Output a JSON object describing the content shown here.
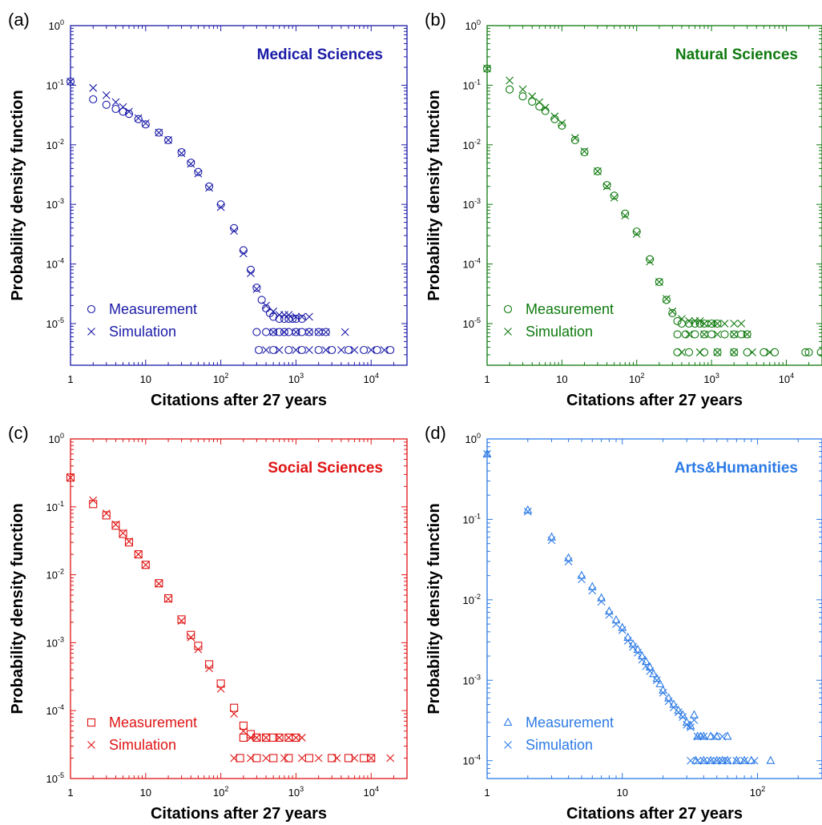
{
  "chart_data": [
    {
      "type": "scatter",
      "panel_label": "(a)",
      "title": "Medical Sciences",
      "color": "#1a1aa8",
      "marker": "circle",
      "xlabel": "Citations after 27 years",
      "ylabel": "Probability density function",
      "x_scale": "log",
      "y_scale": "log",
      "xlim": [
        1,
        30000
      ],
      "ylim": [
        2e-06,
        1
      ],
      "x_ticks": [
        1,
        10,
        100,
        1000,
        10000
      ],
      "x_tick_labels": [
        {
          "base": "1"
        },
        {
          "base": "10"
        },
        {
          "base": "10",
          "exp": "2"
        },
        {
          "base": "10",
          "exp": "3"
        },
        {
          "base": "10",
          "exp": "4"
        }
      ],
      "y_ticks": [
        1e-05,
        0.0001,
        0.001,
        0.01,
        0.1,
        1
      ],
      "y_tick_labels": [
        {
          "base": "10",
          "exp": "-5"
        },
        {
          "base": "10",
          "exp": "-4"
        },
        {
          "base": "10",
          "exp": "-3"
        },
        {
          "base": "10",
          "exp": "-2"
        },
        {
          "base": "10",
          "exp": "-1"
        },
        {
          "base": "10",
          "exp": "0"
        }
      ],
      "legend": {
        "position": "bottom-left",
        "entries": [
          "Measurement",
          "Simulation"
        ]
      },
      "series": [
        {
          "name": "Measurement",
          "marker": "circle",
          "x": [
            1,
            2,
            3,
            4,
            5,
            6,
            8,
            10,
            15,
            20,
            30,
            40,
            50,
            70,
            100,
            150,
            200,
            250,
            300,
            350,
            400,
            450,
            500,
            600,
            700,
            800,
            900,
            1000,
            1200,
            300,
            400,
            500,
            600,
            700,
            800,
            1000,
            1200,
            1500,
            2000,
            2500,
            320,
            500,
            800,
            1200,
            2000,
            3000,
            5000,
            8000,
            12000,
            18000
          ],
          "y": [
            0.115,
            0.058,
            0.047,
            0.04,
            0.036,
            0.033,
            0.027,
            0.022,
            0.016,
            0.012,
            0.0075,
            0.005,
            0.0035,
            0.002,
            0.001,
            0.0004,
            0.00017,
            8e-05,
            4e-05,
            2.5e-05,
            1.8e-05,
            1.5e-05,
            1.3e-05,
            1.2e-05,
            1.2e-05,
            1.2e-05,
            1.2e-05,
            1.2e-05,
            1.2e-05,
            7.2e-06,
            7.2e-06,
            7.2e-06,
            7.2e-06,
            7.2e-06,
            7.2e-06,
            7.2e-06,
            7.2e-06,
            7.2e-06,
            7.2e-06,
            7.2e-06,
            3.6e-06,
            3.6e-06,
            3.6e-06,
            3.6e-06,
            3.6e-06,
            3.6e-06,
            3.6e-06,
            3.6e-06,
            3.6e-06,
            3.6e-06
          ]
        },
        {
          "name": "Simulation",
          "marker": "cross",
          "x": [
            1,
            2,
            3,
            4,
            5,
            6,
            8,
            10,
            15,
            20,
            30,
            40,
            50,
            70,
            100,
            150,
            200,
            250,
            300,
            400,
            500,
            600,
            700,
            800,
            1000,
            1200,
            1500,
            500,
            700,
            1000,
            1500,
            2000,
            2500,
            4500,
            400,
            600,
            1000,
            1500,
            2500,
            4000,
            6000,
            10000,
            15000
          ],
          "y": [
            0.115,
            0.09,
            0.068,
            0.052,
            0.043,
            0.036,
            0.028,
            0.023,
            0.016,
            0.012,
            0.0072,
            0.0048,
            0.0033,
            0.0019,
            0.0009,
            0.00036,
            0.00015,
            7e-05,
            3.8e-05,
            2e-05,
            1.6e-05,
            1.4e-05,
            1.4e-05,
            1.4e-05,
            1.3e-05,
            1.3e-05,
            1.3e-05,
            7.2e-06,
            7.2e-06,
            7.2e-06,
            7.2e-06,
            7.2e-06,
            7.2e-06,
            7.2e-06,
            3.6e-06,
            3.6e-06,
            3.6e-06,
            3.6e-06,
            3.6e-06,
            3.6e-06,
            3.6e-06,
            3.6e-06,
            3.6e-06
          ]
        }
      ]
    },
    {
      "type": "scatter",
      "panel_label": "(b)",
      "title": "Natural Sciences",
      "color": "#0e7a0e",
      "marker": "circle",
      "xlabel": "Citations after 27 years",
      "ylabel": "Probability density function",
      "x_scale": "log",
      "y_scale": "log",
      "xlim": [
        1,
        30000
      ],
      "ylim": [
        2e-06,
        1
      ],
      "x_ticks": [
        1,
        10,
        100,
        1000,
        10000
      ],
      "x_tick_labels": [
        {
          "base": "1"
        },
        {
          "base": "10"
        },
        {
          "base": "10",
          "exp": "2"
        },
        {
          "base": "10",
          "exp": "3"
        },
        {
          "base": "10",
          "exp": "4"
        }
      ],
      "y_ticks": [
        1e-05,
        0.0001,
        0.001,
        0.01,
        0.1,
        1
      ],
      "y_tick_labels": [
        {
          "base": "10",
          "exp": "-5"
        },
        {
          "base": "10",
          "exp": "-4"
        },
        {
          "base": "10",
          "exp": "-3"
        },
        {
          "base": "10",
          "exp": "-2"
        },
        {
          "base": "10",
          "exp": "-1"
        },
        {
          "base": "10",
          "exp": "0"
        }
      ],
      "legend": {
        "position": "bottom-left",
        "entries": [
          "Measurement",
          "Simulation"
        ]
      },
      "series": [
        {
          "name": "Measurement",
          "marker": "circle",
          "x": [
            1,
            2,
            3,
            4,
            5,
            6,
            8,
            10,
            15,
            20,
            30,
            40,
            50,
            70,
            100,
            150,
            200,
            250,
            300,
            350,
            400,
            500,
            600,
            700,
            800,
            1000,
            1200,
            350,
            450,
            600,
            800,
            1000,
            1500,
            2000,
            2500,
            3000,
            350,
            500,
            800,
            1200,
            2000,
            3000,
            5000,
            7000,
            18000,
            20000,
            29000
          ],
          "y": [
            0.19,
            0.085,
            0.065,
            0.053,
            0.044,
            0.037,
            0.027,
            0.021,
            0.012,
            0.0075,
            0.0036,
            0.0021,
            0.0014,
            0.0007,
            0.00035,
            0.00012,
            5e-05,
            2.5e-05,
            1.5e-05,
            1.1e-05,
            1e-05,
            1e-05,
            1e-05,
            1e-05,
            1e-05,
            1e-05,
            1e-05,
            6.6e-06,
            6.6e-06,
            6.6e-06,
            6.6e-06,
            6.6e-06,
            6.6e-06,
            6.6e-06,
            6.6e-06,
            6.6e-06,
            3.3e-06,
            3.3e-06,
            3.3e-06,
            3.3e-06,
            3.3e-06,
            3.3e-06,
            3.3e-06,
            3.3e-06,
            3.3e-06,
            3.3e-06,
            3.3e-06
          ]
        },
        {
          "name": "Simulation",
          "marker": "cross",
          "x": [
            1,
            2,
            3,
            4,
            5,
            6,
            8,
            10,
            15,
            20,
            30,
            40,
            50,
            70,
            100,
            150,
            200,
            250,
            300,
            400,
            500,
            600,
            700,
            800,
            1000,
            1200,
            1500,
            2000,
            2500,
            500,
            800,
            1200,
            2000,
            3000,
            400,
            700,
            1200,
            2000,
            3500,
            6000
          ],
          "y": [
            0.19,
            0.12,
            0.085,
            0.065,
            0.052,
            0.042,
            0.03,
            0.023,
            0.013,
            0.0078,
            0.0036,
            0.002,
            0.0013,
            0.00065,
            0.00032,
            0.00011,
            5e-05,
            2.6e-05,
            1.6e-05,
            1.2e-05,
            1.1e-05,
            1.1e-05,
            1.1e-05,
            1e-05,
            1e-05,
            1e-05,
            1e-05,
            1e-05,
            1e-05,
            6.6e-06,
            6.6e-06,
            6.6e-06,
            6.6e-06,
            6.6e-06,
            3.3e-06,
            3.3e-06,
            3.3e-06,
            3.3e-06,
            3.3e-06,
            3.3e-06
          ]
        }
      ]
    },
    {
      "type": "scatter",
      "panel_label": "(c)",
      "title": "Social Sciences",
      "color": "#e01414",
      "marker": "square",
      "xlabel": "Citations after 27 years",
      "ylabel": "Probability density function",
      "x_scale": "log",
      "y_scale": "log",
      "xlim": [
        1,
        30000
      ],
      "ylim": [
        1e-05,
        1
      ],
      "x_ticks": [
        1,
        10,
        100,
        1000,
        10000
      ],
      "x_tick_labels": [
        {
          "base": "1"
        },
        {
          "base": "10"
        },
        {
          "base": "10",
          "exp": "2"
        },
        {
          "base": "10",
          "exp": "3"
        },
        {
          "base": "10",
          "exp": "4"
        }
      ],
      "y_ticks": [
        1e-05,
        0.0001,
        0.001,
        0.01,
        0.1,
        1
      ],
      "y_tick_labels": [
        {
          "base": "10",
          "exp": "-5"
        },
        {
          "base": "10",
          "exp": "-4"
        },
        {
          "base": "10",
          "exp": "-3"
        },
        {
          "base": "10",
          "exp": "-2"
        },
        {
          "base": "10",
          "exp": "-1"
        },
        {
          "base": "10",
          "exp": "0"
        }
      ],
      "legend": {
        "position": "bottom-left",
        "entries": [
          "Measurement",
          "Simulation"
        ]
      },
      "series": [
        {
          "name": "Measurement",
          "marker": "square",
          "x": [
            1,
            2,
            3,
            4,
            5,
            6,
            8,
            10,
            15,
            20,
            30,
            40,
            50,
            70,
            100,
            150,
            200,
            250,
            300,
            400,
            500,
            200,
            300,
            400,
            600,
            800,
            1000,
            180,
            300,
            500,
            800,
            1500,
            3000,
            5000,
            8000,
            10000
          ],
          "y": [
            0.27,
            0.11,
            0.075,
            0.053,
            0.04,
            0.03,
            0.02,
            0.014,
            0.0075,
            0.0045,
            0.0022,
            0.0013,
            0.0009,
            0.00048,
            0.00025,
            0.00011,
            6e-05,
            4.5e-05,
            4e-05,
            4e-05,
            4e-05,
            4e-05,
            4e-05,
            4e-05,
            4e-05,
            4e-05,
            4e-05,
            2e-05,
            2e-05,
            2e-05,
            2e-05,
            2e-05,
            2e-05,
            2e-05,
            2e-05,
            2e-05
          ]
        },
        {
          "name": "Simulation",
          "marker": "cross",
          "x": [
            1,
            2,
            3,
            4,
            5,
            6,
            8,
            10,
            15,
            20,
            30,
            40,
            50,
            70,
            100,
            150,
            200,
            250,
            300,
            400,
            600,
            800,
            1000,
            1200,
            150,
            250,
            400,
            700,
            1200,
            2000,
            3500,
            6000,
            10000,
            18000
          ],
          "y": [
            0.27,
            0.125,
            0.08,
            0.055,
            0.041,
            0.031,
            0.02,
            0.014,
            0.0074,
            0.0044,
            0.0021,
            0.0012,
            0.0008,
            0.00042,
            0.00021,
            9e-05,
            5e-05,
            4e-05,
            4e-05,
            4e-05,
            4e-05,
            4e-05,
            4e-05,
            4e-05,
            2e-05,
            2e-05,
            2e-05,
            2e-05,
            2e-05,
            2e-05,
            2e-05,
            2e-05,
            2e-05,
            2e-05
          ]
        }
      ]
    },
    {
      "type": "scatter",
      "panel_label": "(d)",
      "title": "Arts&Humanities",
      "color": "#2d7be6",
      "marker": "triangle",
      "xlabel": "Citations after 27 years",
      "ylabel": "Probability density function",
      "x_scale": "log",
      "y_scale": "log",
      "xlim": [
        1,
        300
      ],
      "ylim": [
        6e-05,
        1
      ],
      "x_ticks": [
        1,
        10,
        100
      ],
      "x_tick_labels": [
        {
          "base": "1"
        },
        {
          "base": "10"
        },
        {
          "base": "10",
          "exp": "2"
        }
      ],
      "y_ticks": [
        0.0001,
        0.001,
        0.01,
        0.1,
        1
      ],
      "y_tick_labels": [
        {
          "base": "10",
          "exp": "-4"
        },
        {
          "base": "10",
          "exp": "-3"
        },
        {
          "base": "10",
          "exp": "-2"
        },
        {
          "base": "10",
          "exp": "-1"
        },
        {
          "base": "10",
          "exp": "0"
        }
      ],
      "legend": {
        "position": "bottom-left",
        "entries": [
          "Measurement",
          "Simulation"
        ]
      },
      "series": [
        {
          "name": "Measurement",
          "marker": "triangle",
          "x": [
            1,
            2,
            3,
            4,
            5,
            6,
            7,
            8,
            9,
            10,
            11,
            12,
            13,
            14,
            15,
            16,
            17,
            18,
            19,
            20,
            22,
            24,
            26,
            28,
            30,
            32,
            34,
            36,
            38,
            40,
            45,
            50,
            60,
            35,
            40,
            45,
            50,
            55,
            60,
            70,
            80,
            90,
            125
          ],
          "y": [
            0.65,
            0.13,
            0.06,
            0.033,
            0.02,
            0.0145,
            0.0105,
            0.0072,
            0.0056,
            0.0045,
            0.0034,
            0.0028,
            0.0024,
            0.002,
            0.0017,
            0.00145,
            0.0012,
            0.00105,
            0.0009,
            0.00075,
            0.0006,
            0.0005,
            0.00042,
            0.00037,
            0.0003,
            0.00027,
            0.00037,
            0.0002,
            0.0002,
            0.0002,
            0.0002,
            0.0002,
            0.0002,
            0.0001,
            0.0001,
            0.0001,
            0.0001,
            0.0001,
            0.0001,
            0.0001,
            0.0001,
            0.0001,
            0.0001
          ]
        },
        {
          "name": "Simulation",
          "marker": "cross",
          "x": [
            1,
            2,
            3,
            4,
            5,
            6,
            7,
            8,
            9,
            10,
            11,
            12,
            13,
            14,
            15,
            16,
            18,
            20,
            22,
            24,
            26,
            28,
            30,
            32,
            34,
            36,
            40,
            48,
            55,
            32,
            36,
            40,
            45,
            50,
            55,
            60,
            70,
            80,
            95
          ],
          "y": [
            0.65,
            0.125,
            0.055,
            0.03,
            0.018,
            0.013,
            0.0095,
            0.0065,
            0.005,
            0.0042,
            0.0031,
            0.0026,
            0.0022,
            0.0018,
            0.0015,
            0.0013,
            0.001,
            0.0007,
            0.00055,
            0.00046,
            0.0004,
            0.00035,
            0.00028,
            0.00026,
            0.00032,
            0.0002,
            0.0002,
            0.0002,
            0.0002,
            0.0001,
            0.0001,
            0.0001,
            0.0001,
            0.0001,
            0.0001,
            0.0001,
            0.0001,
            0.0001,
            0.0001
          ]
        }
      ]
    }
  ]
}
